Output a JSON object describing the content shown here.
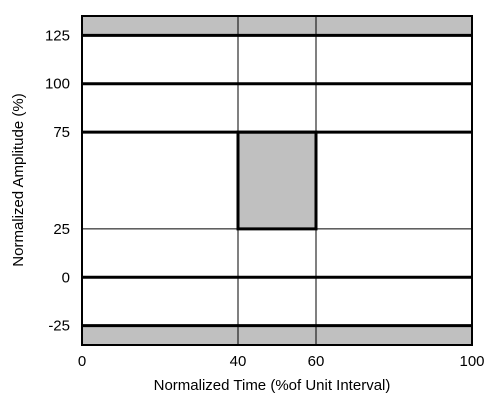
{
  "chart_data": {
    "type": "eye-mask",
    "xlabel": "Normalized Time (%of Unit Interval)",
    "ylabel": "Normalized Amplitude (%)",
    "xlim": [
      0,
      100
    ],
    "ylim": [
      -35,
      135
    ],
    "x_ticks": [
      {
        "value": 0,
        "label": "0"
      },
      {
        "value": 40,
        "label": "40"
      },
      {
        "value": 60,
        "label": "60"
      },
      {
        "value": 100,
        "label": "100"
      }
    ],
    "y_ticks": [
      {
        "value": 125,
        "label": "125"
      },
      {
        "value": 100,
        "label": "100"
      },
      {
        "value": 75,
        "label": "75"
      },
      {
        "value": 25,
        "label": "25"
      },
      {
        "value": 0,
        "label": "0"
      },
      {
        "value": -25,
        "label": "-25"
      }
    ],
    "grid_x": [
      40,
      60
    ],
    "grid_y": [
      25,
      75
    ],
    "thick_levels": [
      125,
      100,
      75,
      0,
      -25
    ],
    "mask_regions": [
      {
        "name": "upper-mask",
        "x": [
          0,
          100
        ],
        "y": [
          125,
          135
        ]
      },
      {
        "name": "center-mask",
        "x": [
          40,
          60
        ],
        "y": [
          25,
          75
        ]
      },
      {
        "name": "lower-mask",
        "x": [
          0,
          100
        ],
        "y": [
          -35,
          -25
        ]
      }
    ],
    "mask_fill": "#c0c0c0"
  }
}
